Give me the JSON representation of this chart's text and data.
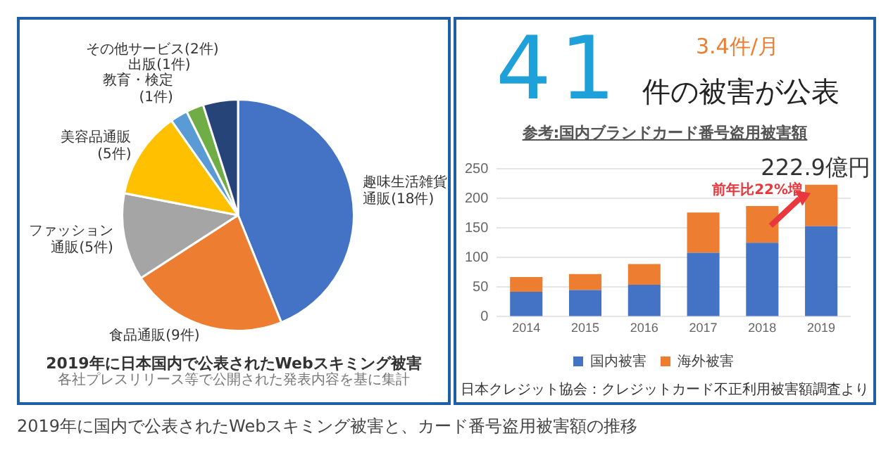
{
  "chart_data": [
    {
      "type": "pie",
      "title": "2019年に日本国内で公表されたWebスキミング被害",
      "subtitle": "各社プレスリリース等で公開された発表内容を基に集計",
      "categories": [
        "趣味生活雑貨通販(18件)",
        "食品通販(9件)",
        "ファッション通販(5件)",
        "美容品通販(5件)",
        "教育・検定(1件)",
        "出版(1件)",
        "その他サービス(2件)"
      ],
      "values": [
        18,
        9,
        5,
        5,
        1,
        1,
        2
      ],
      "colors": [
        "#4472c4",
        "#ed7d31",
        "#a5a5a5",
        "#ffc000",
        "#5b9bd5",
        "#70ad47",
        "#264478"
      ],
      "legend": false,
      "annotations": [
        "2019年に国内で公表されたWebスキミング被害と、カード番号盗用被害額の推移"
      ]
    },
    {
      "type": "bar",
      "title": "参考:国内ブランドカード番号盗用被害額",
      "stacked": true,
      "categories": [
        "2014",
        "2015",
        "2016",
        "2017",
        "2018",
        "2019"
      ],
      "series": [
        {
          "name": "国内被害",
          "color": "#4472c4",
          "values": [
            42,
            45,
            54,
            108,
            125,
            153
          ]
        },
        {
          "name": "海外被害",
          "color": "#ed7d31",
          "values": [
            25,
            27,
            35,
            68,
            62,
            70
          ]
        }
      ],
      "ylim": [
        0,
        250
      ],
      "yticks": [
        0,
        50,
        100,
        150,
        200,
        250
      ],
      "grid": "y",
      "legend": "bottom",
      "annotations": [
        "41",
        "件の被害が公表",
        "3.4件/月",
        "前年比22%増",
        {
          "text": "222.9億円",
          "x": "2019",
          "y": 222.9
        },
        "日本クレジット協会：クレジットカード不正利用被害額調査より"
      ]
    }
  ]
}
